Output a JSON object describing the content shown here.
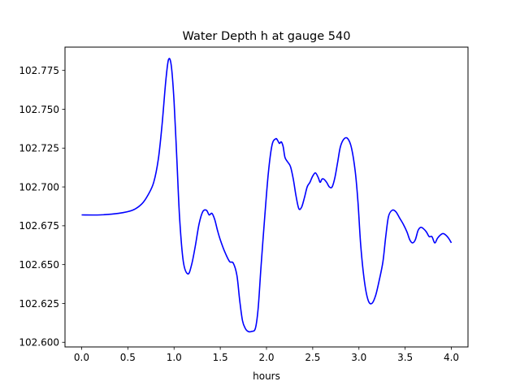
{
  "chart_data": {
    "type": "line",
    "title": "Water Depth h at gauge 540",
    "xlabel": "hours",
    "ylabel": "",
    "xlim": [
      -0.18,
      4.18
    ],
    "ylim": [
      102.597,
      102.79
    ],
    "xticks": [
      0.0,
      0.5,
      1.0,
      1.5,
      2.0,
      2.5,
      3.0,
      3.5,
      4.0
    ],
    "xtick_labels": [
      "0.0",
      "0.5",
      "1.0",
      "1.5",
      "2.0",
      "2.5",
      "3.0",
      "3.5",
      "4.0"
    ],
    "yticks": [
      102.6,
      102.625,
      102.65,
      102.675,
      102.7,
      102.725,
      102.75,
      102.775
    ],
    "ytick_labels": [
      "102.600",
      "102.625",
      "102.650",
      "102.675",
      "102.700",
      "102.725",
      "102.750",
      "102.775"
    ],
    "grid": false,
    "line_color": "#0000ff",
    "series": [
      {
        "x": [
          0.0,
          0.2,
          0.4,
          0.55,
          0.65,
          0.72,
          0.78,
          0.83,
          0.87,
          0.91,
          0.94,
          0.97,
          1.0,
          1.03,
          1.06,
          1.1,
          1.15,
          1.19,
          1.23,
          1.27,
          1.31,
          1.35,
          1.38,
          1.41,
          1.44,
          1.47,
          1.5,
          1.55,
          1.6,
          1.64,
          1.68,
          1.71,
          1.74,
          1.77,
          1.8,
          1.84,
          1.88,
          1.91,
          1.94,
          1.98,
          2.02,
          2.06,
          2.1,
          2.12,
          2.14,
          2.16,
          2.18,
          2.2,
          2.23,
          2.26,
          2.29,
          2.32,
          2.35,
          2.38,
          2.41,
          2.44,
          2.47,
          2.5,
          2.53,
          2.56,
          2.58,
          2.6,
          2.62,
          2.65,
          2.68,
          2.71,
          2.74,
          2.77,
          2.8,
          2.84,
          2.88,
          2.92,
          2.96,
          2.99,
          3.02,
          3.06,
          3.1,
          3.14,
          3.18,
          3.22,
          3.26,
          3.29,
          3.32,
          3.36,
          3.4,
          3.44,
          3.48,
          3.52,
          3.55,
          3.58,
          3.61,
          3.64,
          3.67,
          3.7,
          3.73,
          3.76,
          3.79,
          3.82,
          3.85,
          3.88,
          3.91,
          3.94,
          3.97,
          4.0
        ],
        "y": [
          102.682,
          102.682,
          102.683,
          102.685,
          102.689,
          102.695,
          102.703,
          102.718,
          102.74,
          102.768,
          102.782,
          102.778,
          102.755,
          102.718,
          102.68,
          102.652,
          102.644,
          102.65,
          102.662,
          102.676,
          102.684,
          102.685,
          102.682,
          102.683,
          102.679,
          102.672,
          102.666,
          102.658,
          102.652,
          102.651,
          102.643,
          102.627,
          102.614,
          102.609,
          102.607,
          102.607,
          102.609,
          102.622,
          102.648,
          102.68,
          102.709,
          102.727,
          102.731,
          102.73,
          102.728,
          102.729,
          102.726,
          102.719,
          102.716,
          102.713,
          102.705,
          102.694,
          102.686,
          102.687,
          102.693,
          102.7,
          102.703,
          102.707,
          102.709,
          102.706,
          102.703,
          102.705,
          102.705,
          102.703,
          102.7,
          102.7,
          102.706,
          102.716,
          102.726,
          102.731,
          102.731,
          102.725,
          102.71,
          102.69,
          102.662,
          102.639,
          102.627,
          102.625,
          102.63,
          102.64,
          102.652,
          102.668,
          102.681,
          102.685,
          102.684,
          102.68,
          102.676,
          102.671,
          102.666,
          102.664,
          102.666,
          102.672,
          102.674,
          102.673,
          102.671,
          102.668,
          102.668,
          102.664,
          102.667,
          102.669,
          102.67,
          102.669,
          102.667,
          102.664
        ]
      }
    ]
  }
}
